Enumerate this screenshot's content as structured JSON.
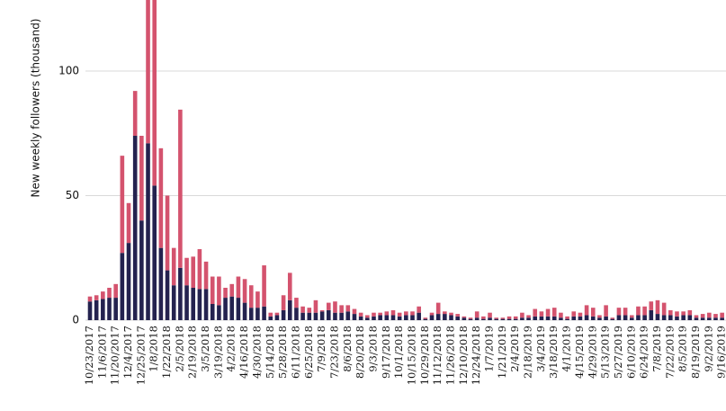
{
  "chart_data": {
    "type": "stacked_bar",
    "y_label": "New weekly followers (thousand)",
    "ylim": [
      0,
      128.5
    ],
    "yticks": [
      0,
      50,
      100
    ],
    "grid": true,
    "categories": [
      "10/23/2017",
      null,
      "11/6/2017",
      null,
      "11/20/2017",
      null,
      "12/4/2017",
      null,
      "12/25/2017",
      null,
      "1/8/2018",
      null,
      "1/22/2018",
      null,
      "2/5/2018",
      null,
      "2/19/2018",
      null,
      "3/5/2018",
      null,
      "3/19/2018",
      null,
      "4/2/2018",
      null,
      "4/16/2018",
      null,
      "4/30/2018",
      null,
      "5/14/2018",
      null,
      "5/28/2018",
      null,
      "6/11/2018",
      null,
      "6/25/2018",
      null,
      "7/9/2018",
      null,
      "7/23/2018",
      null,
      "8/6/2018",
      null,
      "8/20/2018",
      null,
      "9/3/2018",
      null,
      "9/17/2018",
      null,
      "10/1/2018",
      null,
      "10/15/2018",
      null,
      "10/29/2018",
      null,
      "11/12/2018",
      null,
      "11/26/2018",
      null,
      "12/10/2018",
      null,
      "12/24/2018",
      null,
      "1/7/2019",
      null,
      "1/21/2019",
      null,
      "2/4/2019",
      null,
      "2/18/2019",
      null,
      "3/4/2019",
      null,
      "3/18/2019",
      null,
      "4/1/2019",
      null,
      "4/15/2019",
      null,
      "4/29/2019",
      null,
      "5/13/2019",
      null,
      "5/27/2019",
      null,
      "6/10/2019",
      null,
      "6/24/2019",
      null,
      "7/8/2019",
      null,
      "7/22/2019",
      null,
      "8/5/2019",
      null,
      "8/19/2019",
      null,
      "9/2/2019",
      null,
      "9/16/2019"
    ],
    "series": [
      {
        "color": "#24224f",
        "values": [
          7.5,
          8,
          8.5,
          9,
          9,
          27,
          31,
          74,
          40,
          71,
          54,
          29,
          20,
          14,
          21,
          14,
          13,
          12.5,
          12.5,
          6.5,
          6,
          9,
          9.5,
          9,
          7,
          5,
          5,
          5.5,
          1.5,
          2,
          4,
          8,
          5,
          3,
          3,
          3,
          3.5,
          4,
          3,
          3,
          3.5,
          2.5,
          1.5,
          1,
          1.5,
          2,
          2,
          2,
          1.5,
          2,
          2,
          3,
          0.5,
          2,
          2.5,
          2.5,
          2,
          1.5,
          1,
          0.5,
          1,
          0.5,
          1,
          0.5,
          0.5,
          0.5,
          0.5,
          1,
          1,
          1.5,
          1.5,
          1.5,
          1.5,
          1,
          0.5,
          1.5,
          1.5,
          2,
          1.5,
          1,
          1.5,
          0.5,
          2,
          2,
          1,
          2,
          2,
          4,
          2.5,
          2,
          2,
          1.5,
          2,
          2,
          1,
          1,
          1,
          1,
          1
        ]
      },
      {
        "color": "#d4536e",
        "values": [
          2,
          2,
          3,
          4,
          5.5,
          39,
          16,
          18,
          34,
          69,
          86,
          40,
          30,
          15,
          63.5,
          11,
          12.5,
          16,
          11,
          11,
          11.5,
          4,
          5,
          8.5,
          9.5,
          9,
          6.5,
          16.5,
          1.5,
          1,
          6,
          11,
          4,
          2.5,
          2,
          5,
          0.5,
          3,
          4.5,
          3,
          2.5,
          2,
          1.5,
          1,
          1.5,
          1,
          1.5,
          2,
          1.5,
          1.5,
          1.5,
          2.5,
          0.5,
          1,
          4.5,
          1,
          1,
          1,
          0.5,
          0.5,
          2.5,
          1,
          2,
          0.5,
          0.5,
          1,
          1,
          2,
          1,
          3,
          2,
          3,
          3.5,
          2,
          1,
          2,
          1.5,
          4,
          3.5,
          1,
          4.5,
          0.5,
          3,
          3,
          1,
          3.5,
          3.5,
          3.5,
          5.5,
          5,
          2,
          2,
          1.5,
          2,
          1,
          1.5,
          2,
          1.5,
          2
        ]
      }
    ]
  }
}
